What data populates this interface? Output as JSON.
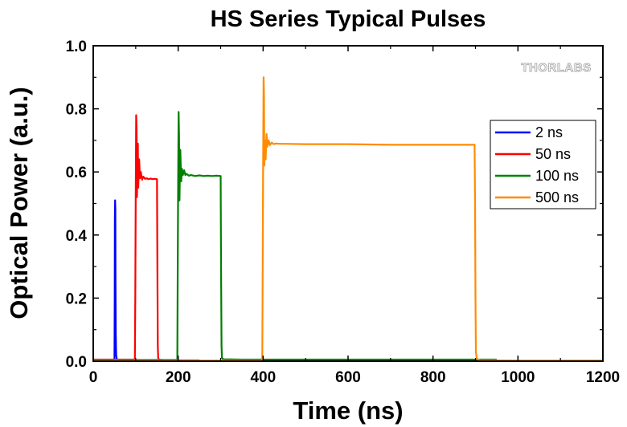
{
  "chart_data": {
    "type": "line",
    "title": "HS Series Typical Pulses",
    "xlabel": "Time (ns)",
    "ylabel": "Optical Power (a.u.)",
    "xlim": [
      0,
      1200
    ],
    "ylim": [
      0,
      1.0
    ],
    "x_ticks": [
      0,
      200,
      400,
      600,
      800,
      1000,
      1200
    ],
    "x_tick_labels": [
      "0",
      "200",
      "400",
      "600",
      "800",
      "1000",
      "1200"
    ],
    "y_ticks": [
      0,
      0.2,
      0.4,
      0.6,
      0.8,
      1.0
    ],
    "y_tick_labels": [
      "0.0",
      "0.2",
      "0.4",
      "0.6",
      "0.8",
      "1.0"
    ],
    "grid": false,
    "legend_position": "right",
    "logo_text": "THORLABS",
    "series": [
      {
        "name": "2 ns",
        "color": "#0000ff",
        "x": [
          48,
          50,
          50.5,
          51,
          51.5,
          52,
          52.5,
          53,
          54,
          56
        ],
        "y": [
          0.0,
          0.0,
          0.2,
          0.45,
          0.51,
          0.48,
          0.25,
          0.09,
          0.02,
          0.0
        ]
      },
      {
        "name": "50 ns",
        "color": "#ff0000",
        "x": [
          0,
          98,
          99,
          100,
          101,
          102,
          103,
          104,
          105,
          106,
          108,
          110,
          112,
          115,
          118,
          122,
          126,
          130,
          135,
          140,
          145,
          150,
          151,
          152,
          153,
          155,
          160,
          170,
          200,
          250
        ],
        "y": [
          0.005,
          0.005,
          0.2,
          0.5,
          0.78,
          0.74,
          0.52,
          0.6,
          0.69,
          0.55,
          0.64,
          0.58,
          0.6,
          0.575,
          0.585,
          0.578,
          0.58,
          0.577,
          0.579,
          0.577,
          0.578,
          0.577,
          0.3,
          0.05,
          0.01,
          0.005,
          0.004,
          0.003,
          0.003,
          0.003
        ]
      },
      {
        "name": "100 ns",
        "color": "#008000",
        "x": [
          0,
          198,
          199,
          200,
          201,
          202,
          203,
          204,
          205,
          207,
          209,
          211,
          214,
          217,
          220,
          225,
          230,
          240,
          250,
          260,
          270,
          280,
          290,
          300,
          301,
          302,
          303,
          306,
          350,
          500,
          700,
          900,
          950
        ],
        "y": [
          0.004,
          0.004,
          0.3,
          0.6,
          0.79,
          0.72,
          0.51,
          0.6,
          0.67,
          0.57,
          0.61,
          0.59,
          0.605,
          0.59,
          0.594,
          0.588,
          0.59,
          0.587,
          0.589,
          0.587,
          0.588,
          0.587,
          0.588,
          0.587,
          0.3,
          0.05,
          0.01,
          0.006,
          0.005,
          0.005,
          0.005,
          0.005,
          0.005
        ]
      },
      {
        "name": "500 ns",
        "color": "#ff8c00",
        "x": [
          0,
          398,
          399,
          400,
          401,
          402,
          403,
          404,
          406,
          408,
          410,
          413,
          416,
          420,
          425,
          430,
          440,
          450,
          500,
          550,
          600,
          700,
          800,
          898,
          899,
          900,
          901,
          903,
          910,
          1000,
          1100,
          1200
        ],
        "y": [
          0.002,
          0.002,
          0.3,
          0.6,
          0.9,
          0.85,
          0.62,
          0.7,
          0.64,
          0.72,
          0.68,
          0.7,
          0.685,
          0.693,
          0.688,
          0.69,
          0.689,
          0.689,
          0.688,
          0.688,
          0.688,
          0.686,
          0.686,
          0.686,
          0.5,
          0.2,
          0.03,
          0.008,
          0.003,
          0.002,
          0.002,
          0.002
        ]
      }
    ]
  }
}
